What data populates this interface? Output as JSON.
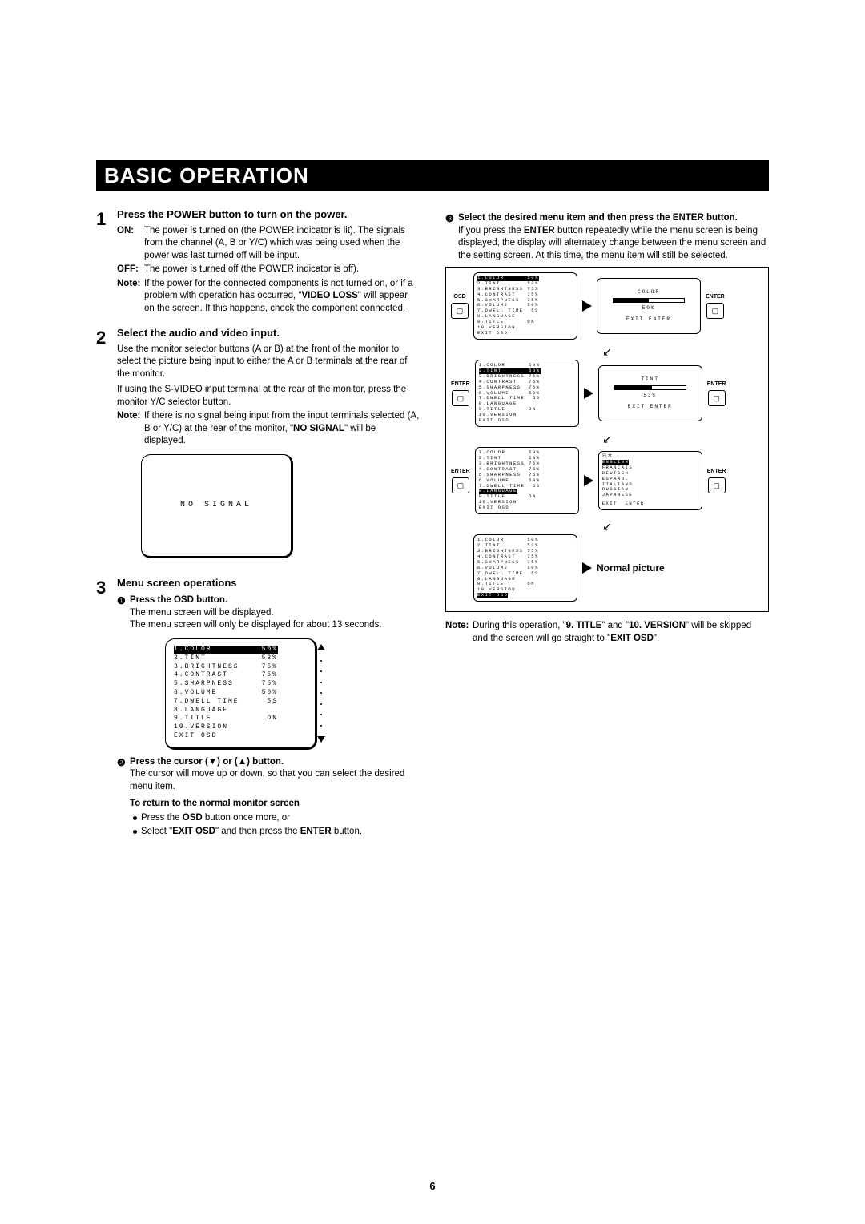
{
  "title": "BASIC OPERATION",
  "pageNumber": "6",
  "left": {
    "step1": {
      "num": "1",
      "title": "Press the POWER button to turn on the power.",
      "on_lbl": "ON:",
      "on_txt": "The power is turned on (the POWER indicator is lit). The signals from the channel (A, B or Y/C) which was being used when the power was last turned off will be input.",
      "off_lbl": "OFF:",
      "off_txt": "The power is turned off (the POWER indicator is off).",
      "note_lbl": "Note:",
      "note_pre": "If the power for the connected components is not turned on, or if a problem with operation has occurred, \"",
      "note_bold": "VIDEO LOSS",
      "note_post": "\" will appear on the screen. If this happens, check the component connected."
    },
    "step2": {
      "num": "2",
      "title": "Select the audio and video input.",
      "p1": "Use the monitor selector buttons (A or B) at the front of the monitor to select the picture being input to either the A or B terminals at the rear of the monitor.",
      "p2": "If using the S-VIDEO input terminal at the rear of the monitor, press the monitor Y/C selector button.",
      "note_lbl": "Note:",
      "note_pre": "If there is no signal being input from the input terminals selected (A, B or Y/C) at the rear of the monitor, \"",
      "note_bold": "NO SIGNAL",
      "note_post": "\" will be displayed.",
      "noSignal": "NO  SIGNAL"
    },
    "step3": {
      "num": "3",
      "title": "Menu screen operations",
      "s1_icon": "❶",
      "s1_title": "Press the OSD button.",
      "s1_p1": "The menu screen will be displayed.",
      "s1_p2": "The menu screen will only be displayed for about 13 seconds.",
      "osd": [
        {
          "l": "1.COLOR",
          "r": "50%",
          "hl": true
        },
        {
          "l": "2.TINT",
          "r": "53%"
        },
        {
          "l": "3.BRIGHTNESS",
          "r": "75%"
        },
        {
          "l": "4.CONTRAST",
          "r": "75%"
        },
        {
          "l": "5.SHARPNESS",
          "r": "75%"
        },
        {
          "l": "6.VOLUME",
          "r": "50%"
        },
        {
          "l": "7.DWELL TIME",
          "r": "5S"
        },
        {
          "l": "8.LANGUAGE",
          "r": ""
        },
        {
          "l": "9.TITLE",
          "r": "ON"
        },
        {
          "l": "10.VERSION",
          "r": ""
        },
        {
          "l": "EXIT OSD",
          "r": ""
        }
      ],
      "s2_icon": "❷",
      "s2_title": "Press the cursor (▼) or (▲) button.",
      "s2_p": "The cursor will move up or down, so that you can select the desired menu item.",
      "retTitle": "To return to the normal monitor screen",
      "ret_b1_pre": "Press the ",
      "ret_b1_b": "OSD",
      "ret_b1_post": " button once more, or",
      "ret_b2_pre": "Select \"",
      "ret_b2_b1": "EXIT OSD",
      "ret_b2_mid": "\" and then press the ",
      "ret_b2_b2": "ENTER",
      "ret_b2_post": " button."
    }
  },
  "right": {
    "s3_icon": "❸",
    "s3_title": "Select the desired menu item and then press the ENTER button.",
    "s3_p_pre": "If you press the ",
    "s3_p_b": "ENTER",
    "s3_p_post": " button repeatedly while the menu screen is being displayed, the display will alternately change between the menu screen and the setting screen. At this time, the menu item will still be selected.",
    "labels": {
      "osd": "OSD",
      "enter": "ENTER",
      "normal": "Normal picture"
    },
    "menuLines": [
      "1.COLOR      50%",
      "2.TINT       53%",
      "3.BRIGHTNESS 75%",
      "4.CONTRAST   75%",
      "5.SHARPNESS  75%",
      "6.VOLUME     50%",
      "7.DWELL TIME  5S",
      "8.LANGUAGE",
      "9.TITLE      ON",
      "10.VERSION",
      "EXIT OSD"
    ],
    "row1": {
      "hl_index": 0,
      "setting_title": "COLOR",
      "setting_val": "50%",
      "bar_pct": 50
    },
    "row2": {
      "hl_index": 1,
      "setting_title": "TINT",
      "setting_val": "53%",
      "bar_pct": 53
    },
    "row3": {
      "hl_index": 7,
      "langs": [
        "日本",
        "ENGLISH",
        "FRANÇAIS",
        "DEUTSCH",
        "ESPAÑOL",
        "ITALIANO",
        "RUSSIAN",
        "JAPANESE"
      ],
      "lang_hl": 1,
      "exit": "EXIT  ENTER"
    },
    "row4": {
      "hl_index": 10
    },
    "exit": "EXIT  ENTER",
    "note_lbl": "Note:",
    "note_pre": "During this operation, \"",
    "note_b1": "9. TITLE",
    "note_mid1": "\" and \"",
    "note_b2": "10. VERSION",
    "note_mid2": "\" will be skipped and the screen will go straight to \"",
    "note_b3": "EXIT OSD",
    "note_post": "\"."
  }
}
